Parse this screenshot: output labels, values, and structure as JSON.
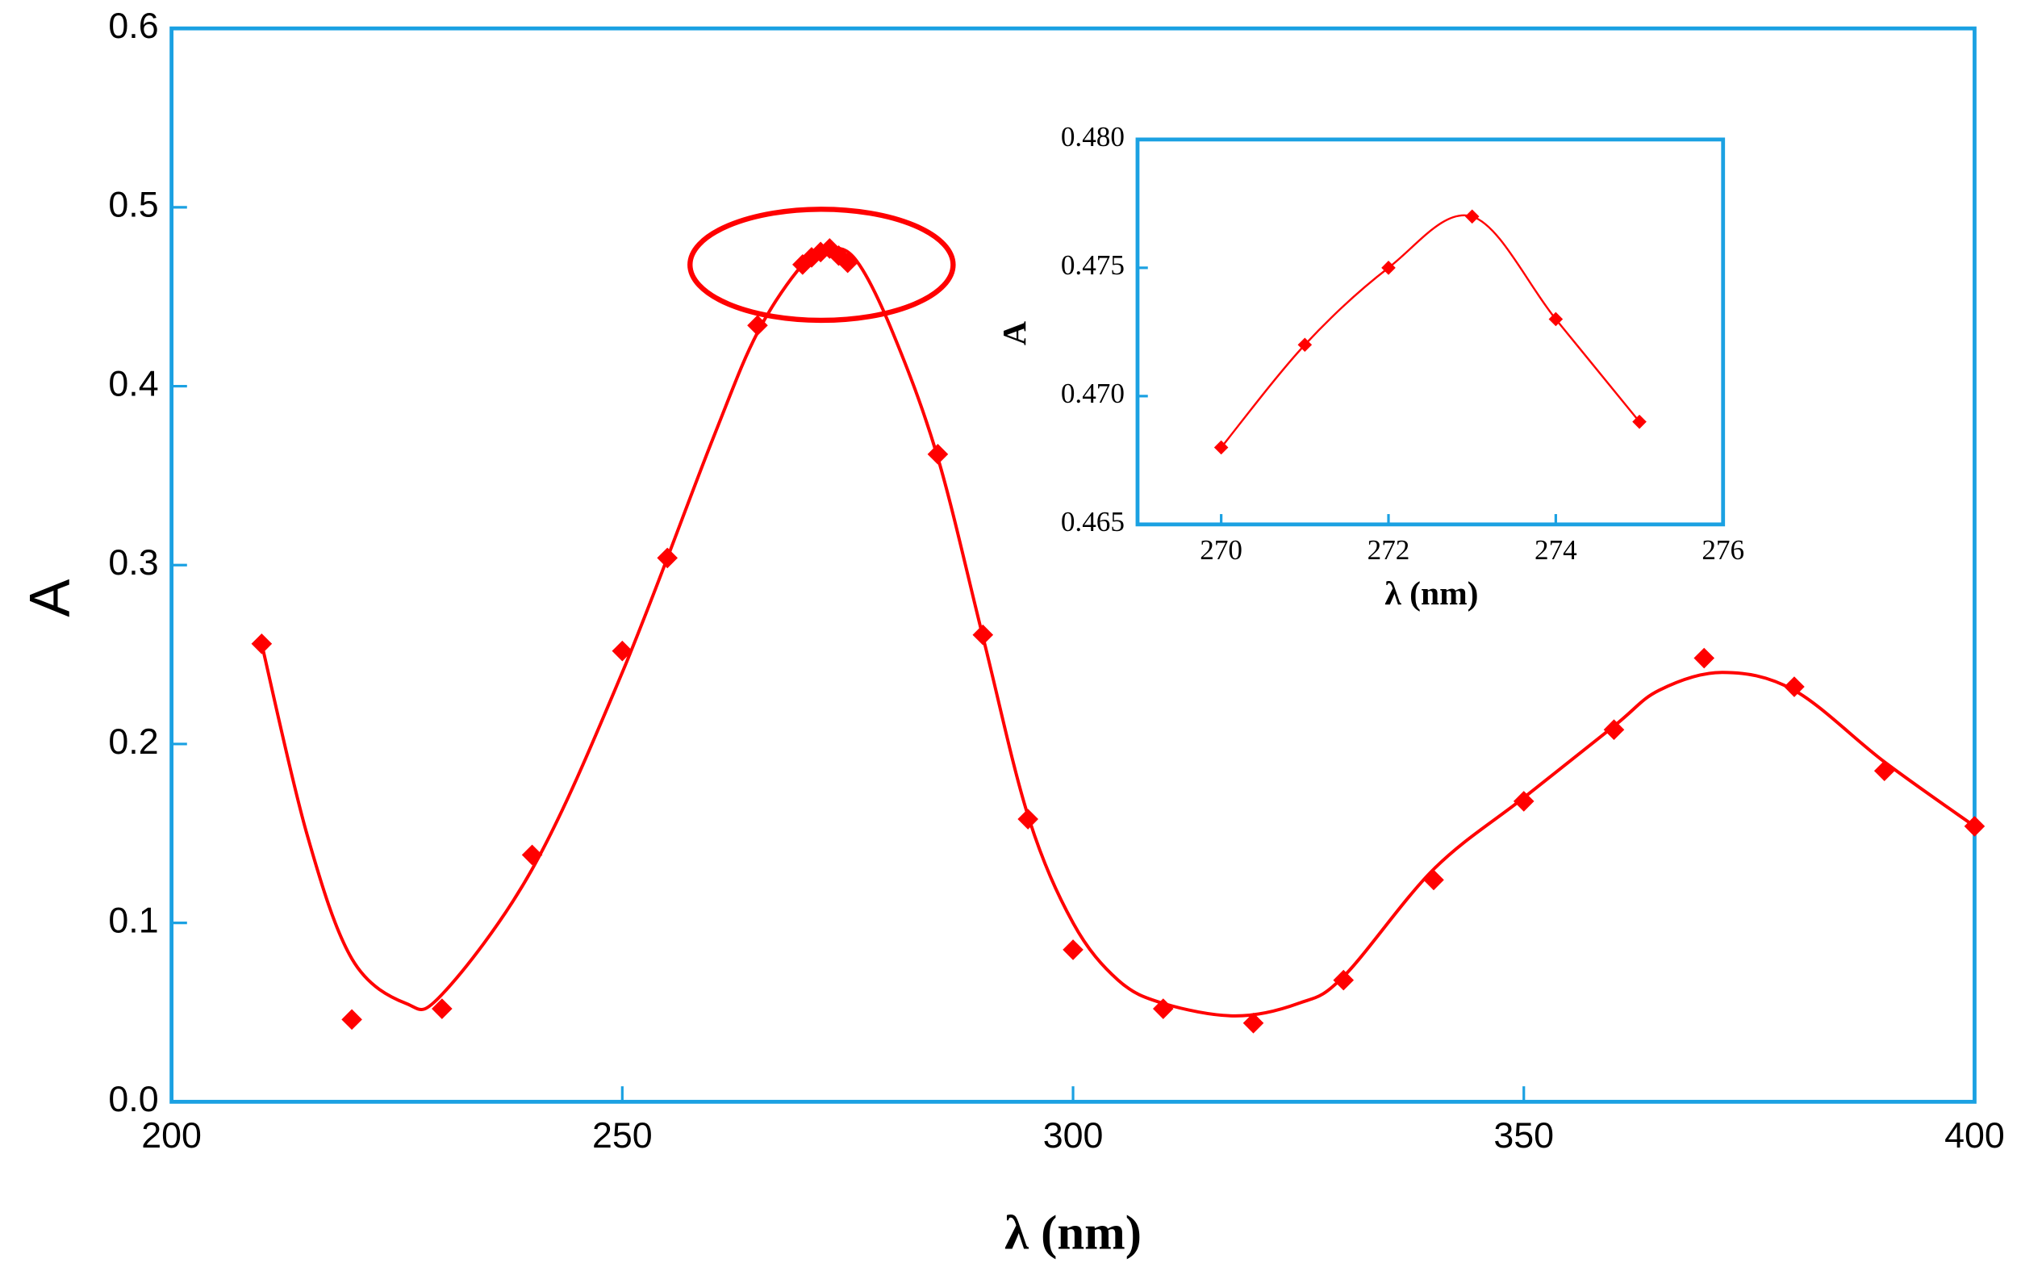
{
  "chart_data": [
    {
      "type": "scatter",
      "x_label": "λ (nm)",
      "y_label": "A",
      "xlim": [
        200,
        400
      ],
      "ylim": [
        0,
        0.6
      ],
      "xticks": [
        200,
        250,
        300,
        350,
        400
      ],
      "yticks": [
        {
          "value": 0,
          "label": "0.0"
        },
        0.1,
        0.2,
        0.3,
        0.4,
        0.5,
        0.6
      ],
      "axis_color": "#1ba1e2",
      "series": [
        {
          "color": "#ff0000",
          "marker": "diamond",
          "x": [
            210,
            220,
            230,
            240,
            250,
            255,
            265,
            270,
            271,
            272,
            273,
            274,
            275,
            285,
            290,
            295,
            300,
            310,
            320,
            330,
            340,
            350,
            360,
            370,
            380,
            390,
            400
          ],
          "values": [
            0.256,
            0.046,
            0.052,
            0.138,
            0.252,
            0.304,
            0.434,
            0.468,
            0.472,
            0.475,
            0.477,
            0.473,
            0.469,
            0.362,
            0.261,
            0.158,
            0.085,
            0.052,
            0.044,
            0.068,
            0.124,
            0.168,
            0.208,
            0.248,
            0.232,
            0.185,
            0.154
          ]
        },
        {
          "color": "#ff0000",
          "marker": "none",
          "x": [
            210,
            215,
            220,
            226,
            230,
            240,
            250,
            260,
            265,
            270,
            273,
            276,
            280,
            285,
            290,
            295,
            300,
            305,
            310,
            318,
            325,
            330,
            340,
            350,
            360,
            365,
            372,
            380,
            390,
            400
          ],
          "values": [
            0.256,
            0.15,
            0.08,
            0.055,
            0.06,
            0.13,
            0.24,
            0.37,
            0.43,
            0.468,
            0.477,
            0.47,
            0.43,
            0.36,
            0.26,
            0.16,
            0.1,
            0.068,
            0.055,
            0.048,
            0.055,
            0.07,
            0.13,
            0.17,
            0.21,
            0.23,
            0.24,
            0.23,
            0.19,
            0.154
          ]
        }
      ]
    },
    {
      "type": "scatter",
      "x_label": "λ (nm)",
      "y_label": "A",
      "xlim": [
        269,
        276
      ],
      "ylim": [
        0.465,
        0.48
      ],
      "xticks": [
        270,
        272,
        274,
        276
      ],
      "yticks": [
        0.465,
        {
          "value": 0.47,
          "label": "0.470"
        },
        0.475,
        {
          "value": 0.48,
          "label": "0.480"
        }
      ],
      "axis_color": "#1ba1e2",
      "series": [
        {
          "color": "#ff0000",
          "marker": "diamond",
          "line": true,
          "x": [
            270,
            271,
            272,
            273,
            274,
            275
          ],
          "values": [
            0.468,
            0.472,
            0.475,
            0.477,
            0.473,
            0.469
          ]
        }
      ]
    }
  ]
}
